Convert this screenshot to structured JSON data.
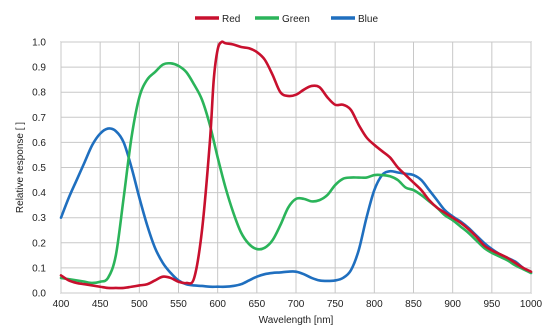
{
  "chart_data": {
    "type": "line",
    "title": "",
    "xlabel": "Wavelength [nm]",
    "ylabel": "Relative response [ ]",
    "xlim": [
      400,
      1000
    ],
    "ylim": [
      0.0,
      1.0
    ],
    "x_ticks": [
      "400",
      "450",
      "500",
      "550",
      "600",
      "650",
      "700",
      "750",
      "800",
      "850",
      "900",
      "950",
      "1000"
    ],
    "y_ticks": [
      "0.0",
      "0.1",
      "0.2",
      "0.3",
      "0.4",
      "0.5",
      "0.6",
      "0.7",
      "0.8",
      "0.9",
      "1.0"
    ],
    "grid": true,
    "legend_position": "top-center",
    "series": [
      {
        "name": "Red",
        "color": "#c8102e",
        "points": [
          [
            400,
            0.07
          ],
          [
            410,
            0.05
          ],
          [
            420,
            0.04
          ],
          [
            430,
            0.035
          ],
          [
            440,
            0.03
          ],
          [
            450,
            0.025
          ],
          [
            460,
            0.02
          ],
          [
            470,
            0.02
          ],
          [
            480,
            0.02
          ],
          [
            490,
            0.025
          ],
          [
            500,
            0.03
          ],
          [
            510,
            0.035
          ],
          [
            520,
            0.05
          ],
          [
            530,
            0.065
          ],
          [
            540,
            0.06
          ],
          [
            550,
            0.045
          ],
          [
            560,
            0.04
          ],
          [
            570,
            0.06
          ],
          [
            580,
            0.25
          ],
          [
            590,
            0.6
          ],
          [
            595,
            0.85
          ],
          [
            600,
            0.97
          ],
          [
            605,
            1.0
          ],
          [
            610,
            0.995
          ],
          [
            620,
            0.99
          ],
          [
            630,
            0.98
          ],
          [
            640,
            0.975
          ],
          [
            650,
            0.96
          ],
          [
            660,
            0.93
          ],
          [
            670,
            0.87
          ],
          [
            680,
            0.8
          ],
          [
            690,
            0.785
          ],
          [
            700,
            0.79
          ],
          [
            710,
            0.81
          ],
          [
            720,
            0.825
          ],
          [
            730,
            0.82
          ],
          [
            740,
            0.78
          ],
          [
            750,
            0.75
          ],
          [
            760,
            0.75
          ],
          [
            770,
            0.73
          ],
          [
            780,
            0.67
          ],
          [
            790,
            0.62
          ],
          [
            800,
            0.59
          ],
          [
            810,
            0.565
          ],
          [
            820,
            0.54
          ],
          [
            830,
            0.5
          ],
          [
            840,
            0.47
          ],
          [
            850,
            0.44
          ],
          [
            860,
            0.41
          ],
          [
            870,
            0.37
          ],
          [
            880,
            0.34
          ],
          [
            890,
            0.32
          ],
          [
            900,
            0.3
          ],
          [
            910,
            0.28
          ],
          [
            920,
            0.255
          ],
          [
            930,
            0.225
          ],
          [
            940,
            0.19
          ],
          [
            950,
            0.17
          ],
          [
            960,
            0.155
          ],
          [
            970,
            0.14
          ],
          [
            980,
            0.12
          ],
          [
            990,
            0.1
          ],
          [
            1000,
            0.085
          ]
        ]
      },
      {
        "name": "Green",
        "color": "#2bb45a",
        "points": [
          [
            400,
            0.06
          ],
          [
            410,
            0.055
          ],
          [
            420,
            0.05
          ],
          [
            430,
            0.045
          ],
          [
            440,
            0.04
          ],
          [
            450,
            0.045
          ],
          [
            460,
            0.06
          ],
          [
            470,
            0.15
          ],
          [
            480,
            0.38
          ],
          [
            490,
            0.62
          ],
          [
            500,
            0.78
          ],
          [
            510,
            0.85
          ],
          [
            520,
            0.88
          ],
          [
            530,
            0.91
          ],
          [
            540,
            0.915
          ],
          [
            550,
            0.905
          ],
          [
            560,
            0.88
          ],
          [
            570,
            0.83
          ],
          [
            580,
            0.77
          ],
          [
            590,
            0.67
          ],
          [
            600,
            0.54
          ],
          [
            610,
            0.42
          ],
          [
            620,
            0.32
          ],
          [
            630,
            0.24
          ],
          [
            640,
            0.195
          ],
          [
            650,
            0.175
          ],
          [
            660,
            0.18
          ],
          [
            670,
            0.21
          ],
          [
            680,
            0.27
          ],
          [
            690,
            0.34
          ],
          [
            700,
            0.375
          ],
          [
            710,
            0.375
          ],
          [
            720,
            0.365
          ],
          [
            730,
            0.37
          ],
          [
            740,
            0.39
          ],
          [
            750,
            0.43
          ],
          [
            760,
            0.455
          ],
          [
            770,
            0.46
          ],
          [
            780,
            0.46
          ],
          [
            790,
            0.46
          ],
          [
            800,
            0.47
          ],
          [
            810,
            0.47
          ],
          [
            820,
            0.465
          ],
          [
            830,
            0.45
          ],
          [
            840,
            0.42
          ],
          [
            850,
            0.41
          ],
          [
            860,
            0.39
          ],
          [
            870,
            0.365
          ],
          [
            880,
            0.34
          ],
          [
            890,
            0.31
          ],
          [
            900,
            0.29
          ],
          [
            910,
            0.265
          ],
          [
            920,
            0.24
          ],
          [
            930,
            0.21
          ],
          [
            940,
            0.18
          ],
          [
            950,
            0.16
          ],
          [
            960,
            0.145
          ],
          [
            970,
            0.13
          ],
          [
            980,
            0.11
          ],
          [
            990,
            0.095
          ],
          [
            1000,
            0.08
          ]
        ]
      },
      {
        "name": "Blue",
        "color": "#1f6fbf",
        "points": [
          [
            400,
            0.3
          ],
          [
            410,
            0.38
          ],
          [
            420,
            0.45
          ],
          [
            430,
            0.52
          ],
          [
            440,
            0.59
          ],
          [
            450,
            0.635
          ],
          [
            460,
            0.655
          ],
          [
            470,
            0.645
          ],
          [
            480,
            0.6
          ],
          [
            490,
            0.5
          ],
          [
            500,
            0.38
          ],
          [
            510,
            0.27
          ],
          [
            520,
            0.18
          ],
          [
            530,
            0.12
          ],
          [
            540,
            0.08
          ],
          [
            550,
            0.05
          ],
          [
            560,
            0.035
          ],
          [
            570,
            0.03
          ],
          [
            580,
            0.028
          ],
          [
            590,
            0.025
          ],
          [
            600,
            0.025
          ],
          [
            610,
            0.025
          ],
          [
            620,
            0.028
          ],
          [
            630,
            0.035
          ],
          [
            640,
            0.05
          ],
          [
            650,
            0.065
          ],
          [
            660,
            0.075
          ],
          [
            670,
            0.08
          ],
          [
            680,
            0.082
          ],
          [
            690,
            0.085
          ],
          [
            700,
            0.085
          ],
          [
            710,
            0.075
          ],
          [
            720,
            0.06
          ],
          [
            730,
            0.05
          ],
          [
            740,
            0.048
          ],
          [
            750,
            0.05
          ],
          [
            760,
            0.06
          ],
          [
            770,
            0.09
          ],
          [
            780,
            0.17
          ],
          [
            790,
            0.3
          ],
          [
            800,
            0.41
          ],
          [
            810,
            0.47
          ],
          [
            820,
            0.485
          ],
          [
            830,
            0.48
          ],
          [
            840,
            0.475
          ],
          [
            850,
            0.47
          ],
          [
            860,
            0.45
          ],
          [
            870,
            0.41
          ],
          [
            880,
            0.37
          ],
          [
            890,
            0.33
          ],
          [
            900,
            0.305
          ],
          [
            910,
            0.285
          ],
          [
            920,
            0.26
          ],
          [
            930,
            0.23
          ],
          [
            940,
            0.2
          ],
          [
            950,
            0.175
          ],
          [
            960,
            0.155
          ],
          [
            970,
            0.14
          ],
          [
            980,
            0.125
          ],
          [
            990,
            0.1
          ],
          [
            1000,
            0.08
          ]
        ]
      }
    ]
  }
}
